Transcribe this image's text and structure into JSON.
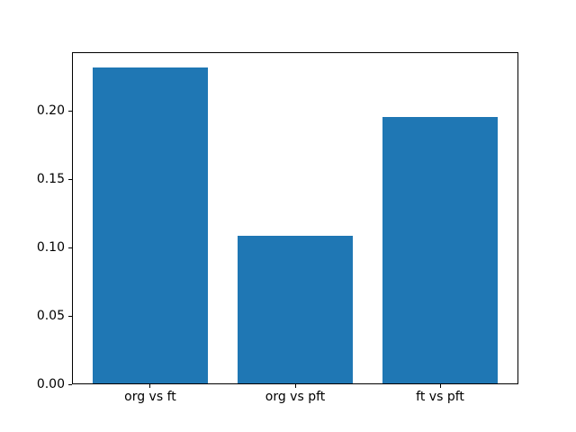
{
  "figure": {
    "background_color": "#ffffff",
    "axes_background_color": "#ffffff",
    "spine_color": "#000000",
    "tick_color": "#000000",
    "label_color": "#000000"
  },
  "chart_data": {
    "type": "bar",
    "categories": [
      "org vs ft",
      "org vs pft",
      "ft vs pft"
    ],
    "values": [
      0.232,
      0.109,
      0.196
    ],
    "bar_color": "#1f77b4",
    "bar_width": 0.8,
    "xlim": [
      -0.54,
      2.54
    ],
    "ylim": [
      0,
      0.2436
    ],
    "yticks": [
      0.0,
      0.05,
      0.1,
      0.15,
      0.2
    ],
    "ytick_labels": [
      "0.00",
      "0.05",
      "0.10",
      "0.15",
      "0.20"
    ],
    "grid": false,
    "legend": null
  }
}
